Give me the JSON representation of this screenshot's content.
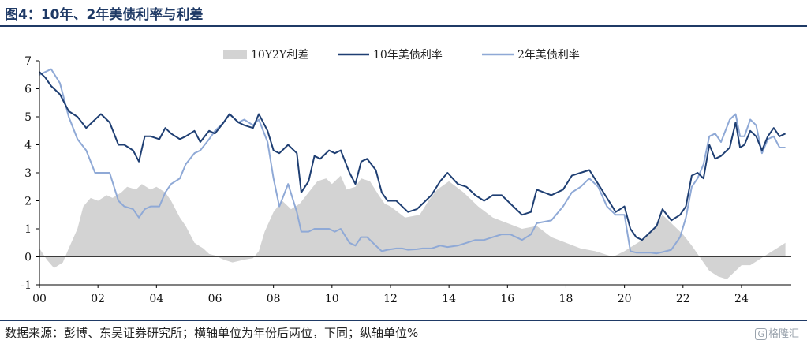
{
  "figure": {
    "title": "图4：10年、2年美债利率与利差",
    "source": "数据来源：彭博、东吴证券研究所；横轴单位为年份后两位，下同；纵轴单位%",
    "watermark_icon": "G",
    "watermark": "格隆汇"
  },
  "chart_data": {
    "type": "line",
    "title": "10年、2年美债利率与利差",
    "xlabel": "年份（后两位）",
    "ylabel": "%",
    "x_tick_labels": [
      "00",
      "02",
      "04",
      "06",
      "08",
      "10",
      "12",
      "14",
      "16",
      "18",
      "20",
      "22",
      "24"
    ],
    "x_tick_values": [
      2000,
      2002,
      2004,
      2006,
      2008,
      2010,
      2012,
      2014,
      2016,
      2018,
      2020,
      2022,
      2024
    ],
    "xlim": [
      2000,
      2025.7
    ],
    "y_tick_labels": [
      "-1",
      "0",
      "1",
      "2",
      "3",
      "4",
      "5",
      "6",
      "7"
    ],
    "ylim": [
      -1,
      7
    ],
    "legend_position": "top",
    "colors": {
      "spread": "#d3d3d3",
      "ten_year": "#1f3f73",
      "two_year": "#8fa9d6"
    },
    "series": [
      {
        "name": "10Y2Y利差",
        "style": "area",
        "x": [
          2000.0,
          2000.25,
          2000.5,
          2000.8,
          2001.0,
          2001.3,
          2001.5,
          2001.75,
          2002.0,
          2002.3,
          2002.5,
          2002.8,
          2003.0,
          2003.3,
          2003.5,
          2003.8,
          2004.0,
          2004.3,
          2004.5,
          2004.8,
          2005.0,
          2005.3,
          2005.6,
          2005.8,
          2006.0,
          2006.3,
          2006.6,
          2007.0,
          2007.3,
          2007.5,
          2007.7,
          2008.0,
          2008.3,
          2008.6,
          2008.9,
          2009.2,
          2009.5,
          2009.8,
          2010.0,
          2010.3,
          2010.5,
          2010.8,
          2011.0,
          2011.3,
          2011.6,
          2011.8,
          2012.0,
          2012.5,
          2013.0,
          2013.3,
          2013.6,
          2014.0,
          2014.5,
          2015.0,
          2015.5,
          2016.0,
          2016.5,
          2017.0,
          2017.5,
          2018.0,
          2018.5,
          2019.0,
          2019.3,
          2019.6,
          2020.0,
          2020.3,
          2020.6,
          2021.0,
          2021.3,
          2021.6,
          2022.0,
          2022.3,
          2022.5,
          2022.7,
          2022.9,
          2023.2,
          2023.5,
          2023.8,
          2024.0,
          2024.3,
          2024.6,
          2024.9,
          2025.2,
          2025.5
        ],
        "values": [
          0.3,
          -0.1,
          -0.4,
          -0.2,
          0.3,
          1.0,
          1.8,
          2.1,
          2.0,
          2.2,
          2.1,
          2.3,
          2.5,
          2.4,
          2.6,
          2.4,
          2.5,
          2.3,
          2.0,
          1.4,
          1.1,
          0.5,
          0.3,
          0.1,
          0.05,
          -0.1,
          -0.2,
          -0.1,
          -0.05,
          0.2,
          0.9,
          1.6,
          2.0,
          1.7,
          1.9,
          2.3,
          2.7,
          2.8,
          2.6,
          2.9,
          2.4,
          2.5,
          2.8,
          2.7,
          2.2,
          1.9,
          1.8,
          1.4,
          1.5,
          2.0,
          2.4,
          2.7,
          2.3,
          1.8,
          1.4,
          1.2,
          1.0,
          1.1,
          0.7,
          0.5,
          0.3,
          0.2,
          0.1,
          0.0,
          0.2,
          0.4,
          0.6,
          1.0,
          1.5,
          1.2,
          0.8,
          0.4,
          0.1,
          -0.2,
          -0.5,
          -0.7,
          -0.8,
          -0.5,
          -0.3,
          -0.3,
          -0.1,
          0.1,
          0.3,
          0.5
        ]
      },
      {
        "name": "10年美债利率",
        "style": "line",
        "x": [
          2000.0,
          2000.2,
          2000.4,
          2000.7,
          2001.0,
          2001.3,
          2001.6,
          2001.9,
          2002.1,
          2002.4,
          2002.7,
          2002.9,
          2003.2,
          2003.4,
          2003.6,
          2003.8,
          2004.1,
          2004.3,
          2004.5,
          2004.8,
          2005.0,
          2005.3,
          2005.5,
          2005.8,
          2006.0,
          2006.3,
          2006.5,
          2006.8,
          2007.0,
          2007.3,
          2007.5,
          2007.8,
          2008.0,
          2008.2,
          2008.5,
          2008.8,
          2008.95,
          2009.2,
          2009.4,
          2009.6,
          2009.9,
          2010.1,
          2010.3,
          2010.6,
          2010.8,
          2011.0,
          2011.2,
          2011.5,
          2011.7,
          2011.9,
          2012.2,
          2012.4,
          2012.6,
          2012.9,
          2013.1,
          2013.4,
          2013.7,
          2013.95,
          2014.3,
          2014.6,
          2014.9,
          2015.2,
          2015.5,
          2015.8,
          2016.1,
          2016.5,
          2016.8,
          2017.0,
          2017.5,
          2017.9,
          2018.2,
          2018.5,
          2018.8,
          2019.1,
          2019.4,
          2019.7,
          2020.0,
          2020.2,
          2020.4,
          2020.6,
          2020.9,
          2021.1,
          2021.3,
          2021.6,
          2021.9,
          2022.1,
          2022.3,
          2022.5,
          2022.7,
          2022.9,
          2023.1,
          2023.3,
          2023.6,
          2023.8,
          2023.95,
          2024.1,
          2024.3,
          2024.5,
          2024.7,
          2024.9,
          2025.1,
          2025.3,
          2025.5
        ],
        "values": [
          6.6,
          6.4,
          6.1,
          5.8,
          5.2,
          5.0,
          4.6,
          4.9,
          5.1,
          4.8,
          4.0,
          4.0,
          3.8,
          3.4,
          4.3,
          4.3,
          4.2,
          4.6,
          4.4,
          4.2,
          4.3,
          4.5,
          4.1,
          4.5,
          4.4,
          4.8,
          5.1,
          4.8,
          4.7,
          4.6,
          5.1,
          4.5,
          3.8,
          3.7,
          4.0,
          3.7,
          2.3,
          2.7,
          3.6,
          3.5,
          3.8,
          3.7,
          3.8,
          3.0,
          2.6,
          3.4,
          3.5,
          3.1,
          2.3,
          2.0,
          2.0,
          1.8,
          1.6,
          1.7,
          1.9,
          2.2,
          2.7,
          3.0,
          2.6,
          2.5,
          2.2,
          2.0,
          2.2,
          2.2,
          1.9,
          1.5,
          1.6,
          2.4,
          2.2,
          2.4,
          2.9,
          3.0,
          3.1,
          2.6,
          2.1,
          1.6,
          1.8,
          1.0,
          0.7,
          0.6,
          0.9,
          1.1,
          1.7,
          1.3,
          1.5,
          1.8,
          2.9,
          3.0,
          2.8,
          4.0,
          3.5,
          3.6,
          3.9,
          4.8,
          3.9,
          4.0,
          4.5,
          4.3,
          3.8,
          4.3,
          4.6,
          4.3,
          4.4
        ]
      },
      {
        "name": "2年美债利率",
        "style": "line",
        "x": [
          2000.0,
          2000.2,
          2000.4,
          2000.7,
          2001.0,
          2001.3,
          2001.6,
          2001.9,
          2002.1,
          2002.4,
          2002.7,
          2002.9,
          2003.2,
          2003.4,
          2003.6,
          2003.8,
          2004.1,
          2004.3,
          2004.5,
          2004.8,
          2005.0,
          2005.3,
          2005.5,
          2005.8,
          2006.0,
          2006.3,
          2006.5,
          2006.8,
          2007.0,
          2007.3,
          2007.5,
          2007.8,
          2008.0,
          2008.2,
          2008.5,
          2008.8,
          2008.95,
          2009.2,
          2009.4,
          2009.6,
          2009.9,
          2010.1,
          2010.3,
          2010.6,
          2010.8,
          2011.0,
          2011.2,
          2011.5,
          2011.7,
          2011.9,
          2012.2,
          2012.4,
          2012.6,
          2012.9,
          2013.1,
          2013.4,
          2013.7,
          2013.95,
          2014.3,
          2014.6,
          2014.9,
          2015.2,
          2015.5,
          2015.8,
          2016.1,
          2016.5,
          2016.8,
          2017.0,
          2017.5,
          2017.9,
          2018.2,
          2018.5,
          2018.8,
          2019.1,
          2019.4,
          2019.7,
          2020.0,
          2020.2,
          2020.4,
          2020.6,
          2020.9,
          2021.1,
          2021.3,
          2021.6,
          2021.9,
          2022.1,
          2022.3,
          2022.5,
          2022.7,
          2022.9,
          2023.1,
          2023.3,
          2023.6,
          2023.8,
          2023.95,
          2024.1,
          2024.3,
          2024.5,
          2024.7,
          2024.9,
          2025.1,
          2025.3,
          2025.5
        ],
        "values": [
          6.5,
          6.6,
          6.7,
          6.2,
          5.0,
          4.2,
          3.8,
          3.0,
          3.0,
          3.0,
          2.0,
          1.8,
          1.7,
          1.4,
          1.7,
          1.8,
          1.8,
          2.3,
          2.6,
          2.8,
          3.3,
          3.7,
          3.8,
          4.2,
          4.5,
          4.8,
          5.1,
          4.8,
          4.9,
          4.7,
          4.9,
          4.1,
          2.8,
          1.8,
          2.6,
          1.6,
          0.9,
          0.9,
          1.0,
          1.0,
          1.0,
          0.9,
          1.0,
          0.5,
          0.4,
          0.7,
          0.7,
          0.4,
          0.2,
          0.25,
          0.3,
          0.3,
          0.25,
          0.27,
          0.3,
          0.3,
          0.4,
          0.35,
          0.4,
          0.5,
          0.6,
          0.6,
          0.7,
          0.8,
          0.8,
          0.6,
          0.8,
          1.2,
          1.3,
          1.8,
          2.3,
          2.5,
          2.8,
          2.5,
          1.8,
          1.5,
          1.5,
          0.2,
          0.15,
          0.15,
          0.15,
          0.12,
          0.17,
          0.25,
          0.7,
          1.4,
          2.5,
          2.8,
          3.3,
          4.3,
          4.4,
          4.1,
          4.9,
          5.1,
          4.3,
          4.3,
          4.9,
          4.7,
          3.7,
          4.2,
          4.3,
          3.9,
          3.9
        ]
      }
    ]
  }
}
